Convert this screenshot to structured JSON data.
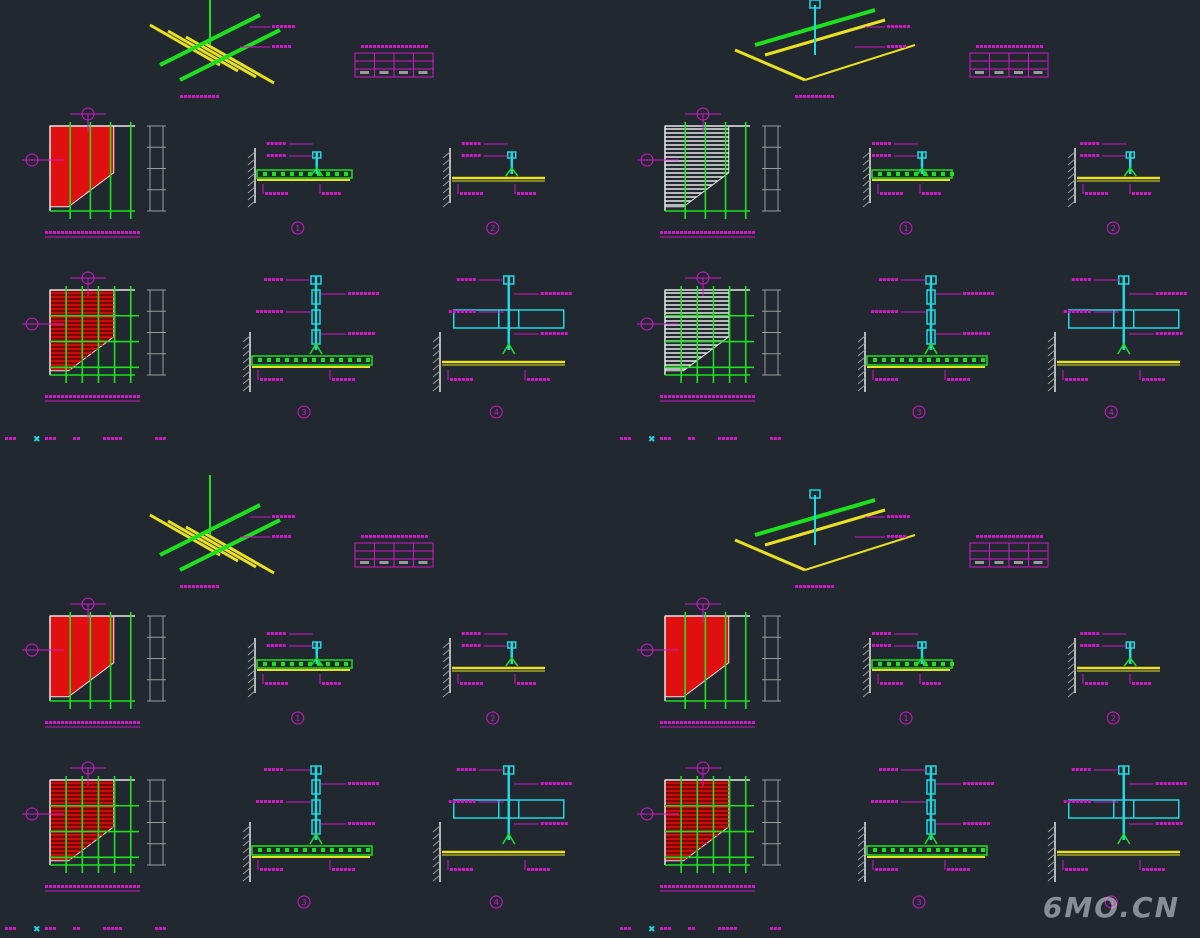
{
  "watermark": "6MO.CN",
  "colors": {
    "background": "#212830",
    "magenta": "#d018c8",
    "green": "#1ee01e",
    "yellow": "#e8e020",
    "cyan": "#20d8e0",
    "red": "#e01010",
    "white": "#e8e8e8",
    "gray": "#9a9a9a"
  },
  "detail_numbers": [
    "1",
    "2",
    "3",
    "4"
  ],
  "sheets": [
    {
      "id": "top-left",
      "panel_fill": "red"
    },
    {
      "id": "top-right",
      "panel_fill": "white"
    },
    {
      "id": "bottom-left",
      "panel_fill": "red"
    },
    {
      "id": "bottom-right",
      "panel_fill": "red"
    }
  ]
}
